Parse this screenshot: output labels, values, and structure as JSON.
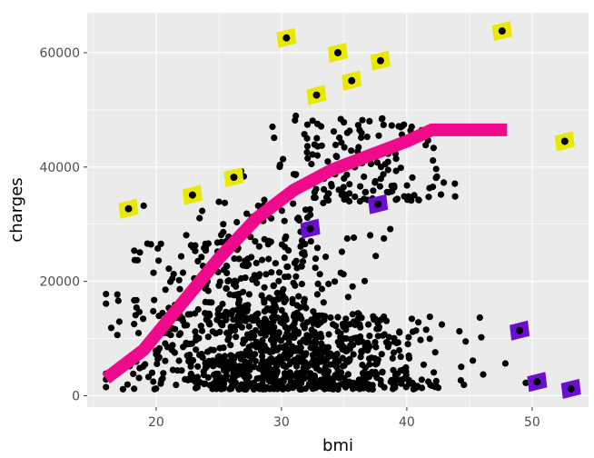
{
  "chart_data": {
    "type": "scatter",
    "xlabel": "bmi",
    "ylabel": "charges",
    "xlim": [
      14.5,
      54.5
    ],
    "ylim": [
      -2000,
      67000
    ],
    "x_ticks": [
      20,
      30,
      40,
      50
    ],
    "x_tick_labels": [
      "20",
      "30",
      "40",
      "50"
    ],
    "y_ticks": [
      0,
      20000,
      40000,
      60000
    ],
    "y_tick_labels": [
      "0",
      "20000",
      "40000",
      "60000"
    ],
    "grid": true,
    "legend": "none",
    "colors": {
      "panel": "#ebebeb",
      "grid": "#ffffff",
      "points": "#000000",
      "curve": "#ee0a8a",
      "highlight_high": "#e8e800",
      "highlight_low": "#6a0fcf"
    },
    "cloud": {
      "description_free": true,
      "clusters": [
        {
          "x_mean": 30.5,
          "x_sd": 5.8,
          "y_min": 1100,
          "y_max": 14000,
          "n": 900
        },
        {
          "x_mean": 27.0,
          "x_sd": 4.5,
          "y_min": 14000,
          "y_max": 27000,
          "n": 240
        },
        {
          "x_mean": 36.0,
          "x_sd": 3.8,
          "y_min": 34000,
          "y_max": 49000,
          "n": 160
        },
        {
          "x_mean": 29.5,
          "x_sd": 3.5,
          "y_min": 27000,
          "y_max": 34000,
          "n": 50
        }
      ]
    },
    "series": [
      {
        "role": "curve",
        "points": [
          {
            "x": 16.0,
            "y": 3000
          },
          {
            "x": 19.0,
            "y": 8000
          },
          {
            "x": 22.0,
            "y": 16000
          },
          {
            "x": 25.0,
            "y": 24000
          },
          {
            "x": 28.0,
            "y": 31000
          },
          {
            "x": 31.0,
            "y": 36000
          },
          {
            "x": 34.0,
            "y": 39500
          },
          {
            "x": 37.0,
            "y": 42000
          },
          {
            "x": 40.0,
            "y": 44500
          },
          {
            "x": 42.0,
            "y": 46500
          },
          {
            "x": 45.0,
            "y": 46500
          },
          {
            "x": 48.0,
            "y": 46500
          }
        ]
      },
      {
        "role": "highlight_high",
        "points": [
          {
            "x": 17.8,
            "y": 32700
          },
          {
            "x": 22.9,
            "y": 35100
          },
          {
            "x": 26.2,
            "y": 38200
          },
          {
            "x": 30.4,
            "y": 62600
          },
          {
            "x": 32.8,
            "y": 52600
          },
          {
            "x": 34.5,
            "y": 60000
          },
          {
            "x": 35.6,
            "y": 55100
          },
          {
            "x": 37.9,
            "y": 58600
          },
          {
            "x": 47.6,
            "y": 63800
          },
          {
            "x": 52.6,
            "y": 44500
          }
        ]
      },
      {
        "role": "highlight_low",
        "points": [
          {
            "x": 32.3,
            "y": 29200
          },
          {
            "x": 37.7,
            "y": 33500
          },
          {
            "x": 49.0,
            "y": 11400
          },
          {
            "x": 50.4,
            "y": 2400
          },
          {
            "x": 53.1,
            "y": 1200
          }
        ]
      }
    ]
  }
}
